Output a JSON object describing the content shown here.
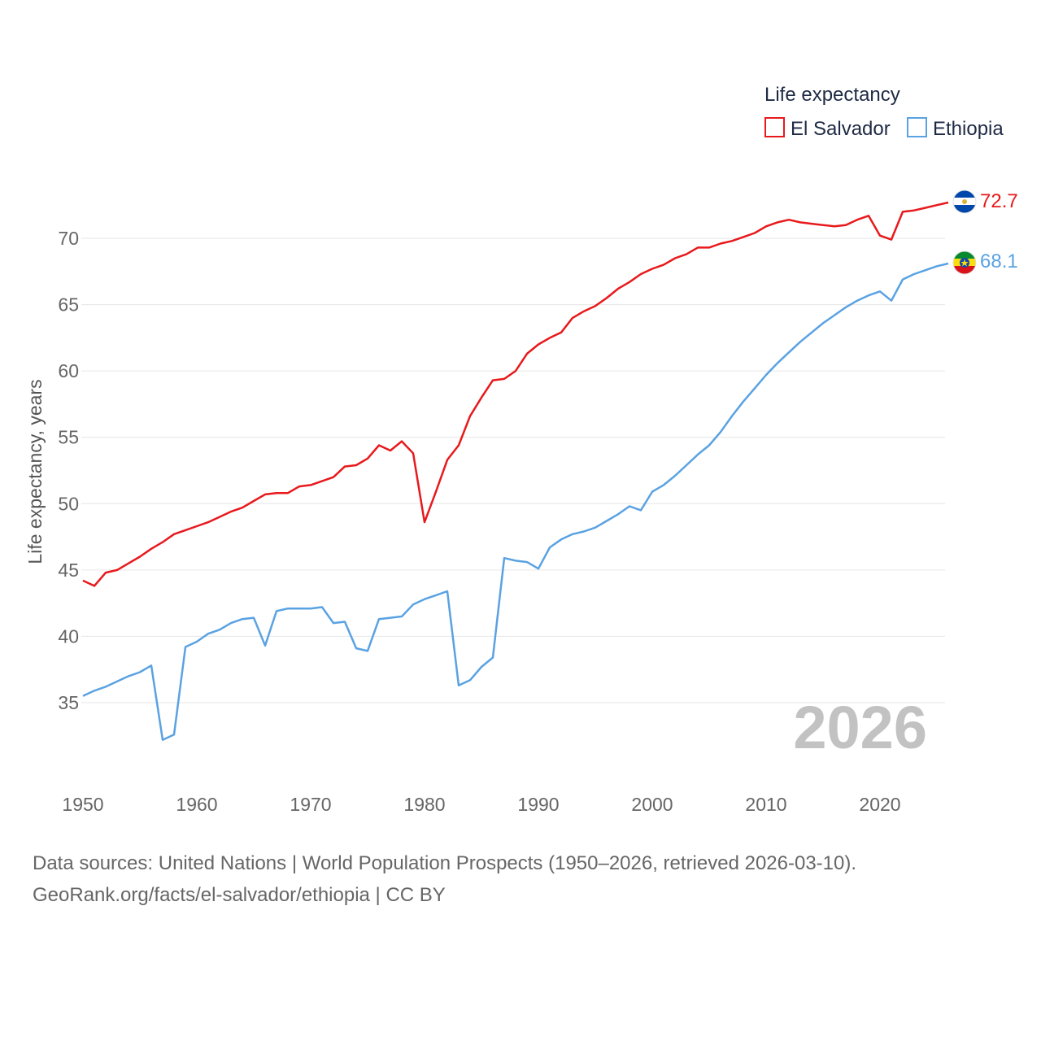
{
  "chart_data": {
    "type": "line",
    "legend_title": "Life expectancy",
    "ylabel": "Life expectancy, years",
    "xlabel": "",
    "ylim": [
      30,
      74
    ],
    "xlim": [
      1950,
      2026
    ],
    "yticks": [
      35,
      40,
      45,
      50,
      55,
      60,
      65,
      70
    ],
    "xticks": [
      1950,
      1960,
      1970,
      1980,
      1990,
      2000,
      2010,
      2020
    ],
    "grid": true,
    "legend_position": "top-right",
    "current_year": "2026",
    "series": [
      {
        "name": "El Salvador",
        "color": "#e8191c",
        "end_label": "72.7",
        "flag_icon": "el-salvador-flag-icon",
        "x": [
          1950,
          1951,
          1952,
          1953,
          1954,
          1955,
          1956,
          1957,
          1958,
          1959,
          1960,
          1961,
          1962,
          1963,
          1964,
          1965,
          1966,
          1967,
          1968,
          1969,
          1970,
          1971,
          1972,
          1973,
          1974,
          1975,
          1976,
          1977,
          1978,
          1979,
          1980,
          1981,
          1982,
          1983,
          1984,
          1985,
          1986,
          1987,
          1988,
          1989,
          1990,
          1991,
          1992,
          1993,
          1994,
          1995,
          1996,
          1997,
          1998,
          1999,
          2000,
          2001,
          2002,
          2003,
          2004,
          2005,
          2006,
          2007,
          2008,
          2009,
          2010,
          2011,
          2012,
          2013,
          2014,
          2015,
          2016,
          2017,
          2018,
          2019,
          2020,
          2021,
          2022,
          2023,
          2024,
          2025,
          2026
        ],
        "values": [
          44.2,
          43.8,
          44.8,
          45.0,
          45.5,
          46.0,
          46.6,
          47.1,
          47.7,
          48.0,
          48.3,
          48.6,
          49.0,
          49.4,
          49.7,
          50.2,
          50.7,
          50.8,
          50.8,
          51.3,
          51.4,
          51.7,
          52.0,
          52.8,
          52.9,
          53.4,
          54.4,
          54.0,
          54.7,
          53.8,
          48.6,
          50.9,
          53.3,
          54.4,
          56.6,
          58.0,
          59.3,
          59.4,
          60.0,
          61.3,
          62.0,
          62.5,
          62.9,
          64.0,
          64.5,
          64.9,
          65.5,
          66.2,
          66.7,
          67.3,
          67.7,
          68.0,
          68.5,
          68.8,
          69.3,
          69.3,
          69.6,
          69.8,
          70.1,
          70.4,
          70.9,
          71.2,
          71.4,
          71.2,
          71.1,
          71.0,
          70.9,
          71.0,
          71.4,
          71.7,
          70.2,
          69.9,
          72.0,
          72.1,
          72.3,
          72.5,
          72.7
        ]
      },
      {
        "name": "Ethiopia",
        "color": "#5aa2e2",
        "end_label": "68.1",
        "flag_icon": "ethiopia-flag-icon",
        "x": [
          1950,
          1951,
          1952,
          1953,
          1954,
          1955,
          1956,
          1957,
          1958,
          1959,
          1960,
          1961,
          1962,
          1963,
          1964,
          1965,
          1966,
          1967,
          1968,
          1969,
          1970,
          1971,
          1972,
          1973,
          1974,
          1975,
          1976,
          1977,
          1978,
          1979,
          1980,
          1981,
          1982,
          1983,
          1984,
          1985,
          1986,
          1987,
          1988,
          1989,
          1990,
          1991,
          1992,
          1993,
          1994,
          1995,
          1996,
          1997,
          1998,
          1999,
          2000,
          2001,
          2002,
          2003,
          2004,
          2005,
          2006,
          2007,
          2008,
          2009,
          2010,
          2011,
          2012,
          2013,
          2014,
          2015,
          2016,
          2017,
          2018,
          2019,
          2020,
          2021,
          2022,
          2023,
          2024,
          2025,
          2026
        ],
        "values": [
          35.5,
          35.9,
          36.2,
          36.6,
          37.0,
          37.3,
          37.8,
          32.2,
          32.6,
          39.2,
          39.6,
          40.2,
          40.5,
          41.0,
          41.3,
          41.4,
          39.3,
          41.9,
          42.1,
          42.1,
          42.1,
          42.2,
          41.0,
          41.1,
          39.1,
          38.9,
          41.3,
          41.4,
          41.5,
          42.4,
          42.8,
          43.1,
          43.4,
          36.3,
          36.7,
          37.7,
          38.4,
          45.9,
          45.7,
          45.6,
          45.1,
          46.7,
          47.3,
          47.7,
          47.9,
          48.2,
          48.7,
          49.2,
          49.8,
          49.5,
          50.9,
          51.4,
          52.1,
          52.9,
          53.7,
          54.4,
          55.4,
          56.6,
          57.7,
          58.7,
          59.7,
          60.6,
          61.4,
          62.2,
          62.9,
          63.6,
          64.2,
          64.8,
          65.3,
          65.7,
          66.0,
          65.3,
          66.9,
          67.3,
          67.6,
          67.9,
          68.1
        ]
      }
    ]
  },
  "footer": {
    "source_line": "Data sources: United Nations | World Population Prospects (1950–2026, retrieved 2026-03-10).",
    "credit_line": "GeoRank.org/facts/el-salvador/ethiopia | CC BY"
  }
}
